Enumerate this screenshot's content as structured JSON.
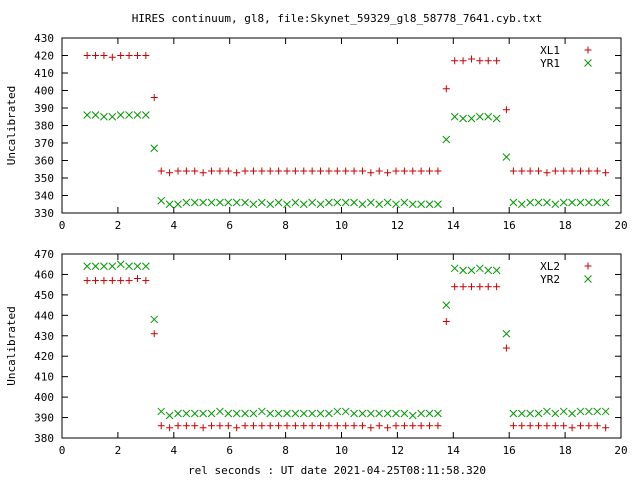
{
  "figure": {
    "title": "HIRES continuum, gl8, file:Skynet_59329_gl8_58778_7641.cyb.txt",
    "xlabel": "rel seconds : UT date 2021-04-25T08:11:58.320"
  },
  "chart_data": [
    {
      "type": "scatter",
      "ylabel": "Uncalibrated",
      "xlim": [
        0,
        20
      ],
      "ylim": [
        330,
        430
      ],
      "xticks": [
        0,
        2,
        4,
        6,
        8,
        10,
        12,
        14,
        16,
        18,
        20
      ],
      "yticks": [
        330,
        340,
        350,
        360,
        370,
        380,
        390,
        400,
        410,
        420,
        430
      ],
      "legend_position": "top-right",
      "grid": false,
      "series": [
        {
          "name": "XL1",
          "marker": "plus",
          "color": "#cc0000",
          "x": [
            0.9,
            1.2,
            1.5,
            1.8,
            2.1,
            2.4,
            2.7,
            3.0,
            3.3,
            3.55,
            3.85,
            4.15,
            4.45,
            4.75,
            5.05,
            5.35,
            5.65,
            5.95,
            6.25,
            6.55,
            6.85,
            7.15,
            7.45,
            7.75,
            8.05,
            8.35,
            8.65,
            8.95,
            9.25,
            9.55,
            9.85,
            10.15,
            10.45,
            10.75,
            11.05,
            11.35,
            11.65,
            11.95,
            12.25,
            12.55,
            12.85,
            13.15,
            13.45,
            13.75,
            14.05,
            14.35,
            14.65,
            14.95,
            15.25,
            15.55,
            15.9,
            16.15,
            16.45,
            16.75,
            17.05,
            17.35,
            17.65,
            17.95,
            18.25,
            18.55,
            18.85,
            19.15,
            19.45
          ],
          "y": [
            420,
            420,
            420,
            419,
            420,
            420,
            420,
            420,
            396,
            354,
            353,
            354,
            354,
            354,
            353,
            354,
            354,
            354,
            353,
            354,
            354,
            354,
            354,
            354,
            354,
            354,
            354,
            354,
            354,
            354,
            354,
            354,
            354,
            354,
            353,
            354,
            353,
            354,
            354,
            354,
            354,
            354,
            354,
            401,
            417,
            417,
            418,
            417,
            417,
            417,
            389,
            354,
            354,
            354,
            354,
            353,
            354,
            354,
            354,
            354,
            354,
            354,
            353
          ]
        },
        {
          "name": "YR1",
          "marker": "cross",
          "color": "#009900",
          "x": [
            0.9,
            1.2,
            1.5,
            1.8,
            2.1,
            2.4,
            2.7,
            3.0,
            3.3,
            3.55,
            3.85,
            4.15,
            4.45,
            4.75,
            5.05,
            5.35,
            5.65,
            5.95,
            6.25,
            6.55,
            6.85,
            7.15,
            7.45,
            7.75,
            8.05,
            8.35,
            8.65,
            8.95,
            9.25,
            9.55,
            9.85,
            10.15,
            10.45,
            10.75,
            11.05,
            11.35,
            11.65,
            11.95,
            12.25,
            12.55,
            12.85,
            13.15,
            13.45,
            13.75,
            14.05,
            14.35,
            14.65,
            14.95,
            15.25,
            15.55,
            15.9,
            16.15,
            16.45,
            16.75,
            17.05,
            17.35,
            17.65,
            17.95,
            18.25,
            18.55,
            18.85,
            19.15,
            19.45
          ],
          "y": [
            386,
            386,
            385,
            385,
            386,
            386,
            386,
            386,
            367,
            337,
            335,
            335,
            336,
            336,
            336,
            336,
            336,
            336,
            336,
            336,
            335,
            336,
            335,
            336,
            335,
            336,
            335,
            336,
            335,
            336,
            336,
            336,
            336,
            335,
            336,
            335,
            336,
            335,
            336,
            335,
            335,
            335,
            335,
            372,
            385,
            384,
            384,
            385,
            385,
            384,
            362,
            336,
            335,
            336,
            336,
            336,
            335,
            336,
            336,
            336,
            336,
            336,
            336
          ]
        }
      ]
    },
    {
      "type": "scatter",
      "ylabel": "Uncalibrated",
      "xlim": [
        0,
        20
      ],
      "ylim": [
        380,
        470
      ],
      "xticks": [
        0,
        2,
        4,
        6,
        8,
        10,
        12,
        14,
        16,
        18,
        20
      ],
      "yticks": [
        380,
        390,
        400,
        410,
        420,
        430,
        440,
        450,
        460,
        470
      ],
      "legend_position": "top-right",
      "grid": false,
      "series": [
        {
          "name": "XL2",
          "marker": "plus",
          "color": "#cc0000",
          "x": [
            0.9,
            1.2,
            1.5,
            1.8,
            2.1,
            2.4,
            2.7,
            3.0,
            3.3,
            3.55,
            3.85,
            4.15,
            4.45,
            4.75,
            5.05,
            5.35,
            5.65,
            5.95,
            6.25,
            6.55,
            6.85,
            7.15,
            7.45,
            7.75,
            8.05,
            8.35,
            8.65,
            8.95,
            9.25,
            9.55,
            9.85,
            10.15,
            10.45,
            10.75,
            11.05,
            11.35,
            11.65,
            11.95,
            12.25,
            12.55,
            12.85,
            13.15,
            13.45,
            13.75,
            14.05,
            14.35,
            14.65,
            14.95,
            15.25,
            15.55,
            15.9,
            16.15,
            16.45,
            16.75,
            17.05,
            17.35,
            17.65,
            17.95,
            18.25,
            18.55,
            18.85,
            19.15,
            19.45
          ],
          "y": [
            457,
            457,
            457,
            457,
            457,
            457,
            458,
            457,
            431,
            386,
            385,
            386,
            386,
            386,
            385,
            386,
            386,
            386,
            385,
            386,
            386,
            386,
            386,
            386,
            386,
            386,
            386,
            386,
            386,
            386,
            386,
            386,
            386,
            386,
            385,
            386,
            385,
            386,
            386,
            386,
            386,
            386,
            386,
            437,
            454,
            454,
            454,
            454,
            454,
            454,
            424,
            386,
            386,
            386,
            386,
            386,
            386,
            386,
            385,
            386,
            386,
            386,
            385
          ]
        },
        {
          "name": "YR2",
          "marker": "cross",
          "color": "#009900",
          "x": [
            0.9,
            1.2,
            1.5,
            1.8,
            2.1,
            2.4,
            2.7,
            3.0,
            3.3,
            3.55,
            3.85,
            4.15,
            4.45,
            4.75,
            5.05,
            5.35,
            5.65,
            5.95,
            6.25,
            6.55,
            6.85,
            7.15,
            7.45,
            7.75,
            8.05,
            8.35,
            8.65,
            8.95,
            9.25,
            9.55,
            9.85,
            10.15,
            10.45,
            10.75,
            11.05,
            11.35,
            11.65,
            11.95,
            12.25,
            12.55,
            12.85,
            13.15,
            13.45,
            13.75,
            14.05,
            14.35,
            14.65,
            14.95,
            15.25,
            15.55,
            15.9,
            16.15,
            16.45,
            16.75,
            17.05,
            17.35,
            17.65,
            17.95,
            18.25,
            18.55,
            18.85,
            19.15,
            19.45
          ],
          "y": [
            464,
            464,
            464,
            464,
            465,
            464,
            464,
            464,
            438,
            393,
            391,
            392,
            392,
            392,
            392,
            392,
            393,
            392,
            392,
            392,
            392,
            393,
            392,
            392,
            392,
            392,
            392,
            392,
            392,
            392,
            393,
            393,
            392,
            392,
            392,
            392,
            392,
            392,
            392,
            391,
            392,
            392,
            392,
            445,
            463,
            462,
            462,
            463,
            462,
            462,
            431,
            392,
            392,
            392,
            392,
            393,
            392,
            393,
            392,
            393,
            393,
            393,
            393
          ]
        }
      ]
    }
  ]
}
